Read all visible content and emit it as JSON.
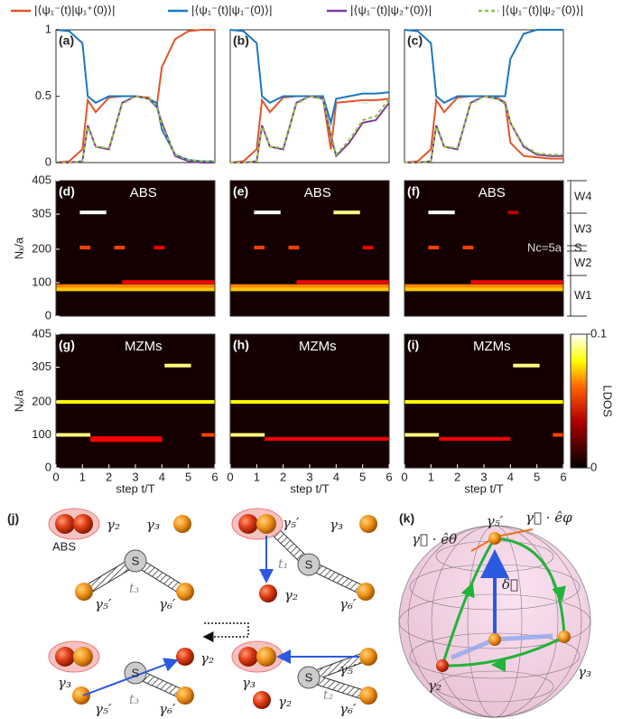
{
  "chart_data": [
    {
      "type": "line",
      "label": "(a)",
      "x": [
        0,
        0.5,
        1,
        1.2,
        1.5,
        2,
        2.5,
        3,
        3.5,
        3.8,
        4,
        4.5,
        5,
        5.5,
        6
      ],
      "xlim": [
        0,
        6
      ],
      "ylim": [
        0,
        1
      ],
      "yticks": [
        0,
        0.5,
        1
      ],
      "series": [
        {
          "name": "|⟨ψ₁⁻(t)|ψ₁⁺(0)⟩|",
          "color": "#e0562a",
          "values": [
            0,
            0.01,
            0.1,
            0.47,
            0.38,
            0.49,
            0.5,
            0.5,
            0.49,
            0.42,
            0.72,
            0.93,
            0.99,
            1,
            1
          ]
        },
        {
          "name": "|⟨ψ₁⁻(t)|ψ₁⁻(0)⟩|",
          "color": "#1a78c2",
          "values": [
            1,
            0.99,
            0.9,
            0.5,
            0.45,
            0.5,
            0.5,
            0.5,
            0.48,
            0.45,
            0.25,
            0.06,
            0.02,
            0.01,
            0.01
          ]
        },
        {
          "name": "|⟨ψ₁⁻(t)|ψ₂⁺(0)⟩|",
          "color": "#7e3b9a",
          "values": [
            0,
            0,
            0.01,
            0.28,
            0.12,
            0.1,
            0.45,
            0.5,
            0.48,
            0.42,
            0.3,
            0.05,
            0.01,
            0,
            0
          ]
        },
        {
          "name": "|⟨ψ₁⁻(t)|ψ₂⁻(0)⟩|",
          "color": "#8dc63f",
          "dash": true,
          "values": [
            0,
            0,
            0.01,
            0.27,
            0.12,
            0.11,
            0.44,
            0.5,
            0.48,
            0.43,
            0.28,
            0.06,
            0.02,
            0.01,
            0.01
          ]
        }
      ]
    },
    {
      "type": "line",
      "label": "(b)",
      "x": [
        0,
        0.5,
        1,
        1.2,
        1.5,
        2,
        2.5,
        3,
        3.5,
        3.8,
        4,
        4.5,
        5,
        5.5,
        6
      ],
      "xlim": [
        0,
        6
      ],
      "ylim": [
        0,
        1
      ],
      "series": [
        {
          "color": "#e0562a",
          "values": [
            0,
            0.01,
            0.1,
            0.47,
            0.38,
            0.49,
            0.5,
            0.5,
            0.49,
            0.1,
            0.45,
            0.46,
            0.47,
            0.47,
            0.48
          ]
        },
        {
          "color": "#1a78c2",
          "values": [
            1,
            0.99,
            0.9,
            0.5,
            0.45,
            0.5,
            0.5,
            0.5,
            0.5,
            0.3,
            0.48,
            0.5,
            0.52,
            0.52,
            0.53
          ]
        },
        {
          "color": "#7e3b9a",
          "values": [
            0,
            0,
            0.01,
            0.28,
            0.12,
            0.1,
            0.45,
            0.5,
            0.48,
            0.2,
            0.05,
            0.15,
            0.3,
            0.32,
            0.45
          ]
        },
        {
          "color": "#8dc63f",
          "dash": true,
          "values": [
            0,
            0,
            0.01,
            0.27,
            0.12,
            0.11,
            0.44,
            0.5,
            0.48,
            0.22,
            0.06,
            0.17,
            0.32,
            0.35,
            0.48
          ]
        }
      ]
    },
    {
      "type": "line",
      "label": "(c)",
      "x": [
        0,
        0.5,
        1,
        1.2,
        1.5,
        2,
        2.5,
        3,
        3.5,
        3.8,
        4,
        4.5,
        5,
        5.5,
        6
      ],
      "xlim": [
        0,
        6
      ],
      "ylim": [
        0,
        1
      ],
      "series": [
        {
          "color": "#e0562a",
          "values": [
            0,
            0.01,
            0.1,
            0.47,
            0.38,
            0.49,
            0.5,
            0.5,
            0.49,
            0.45,
            0.15,
            0.05,
            0.04,
            0.03,
            0.03
          ]
        },
        {
          "color": "#1a78c2",
          "values": [
            1,
            0.99,
            0.9,
            0.5,
            0.45,
            0.5,
            0.5,
            0.5,
            0.5,
            0.5,
            0.78,
            0.97,
            1,
            1,
            1
          ]
        },
        {
          "color": "#7e3b9a",
          "values": [
            0,
            0,
            0.01,
            0.28,
            0.12,
            0.1,
            0.45,
            0.5,
            0.48,
            0.45,
            0.3,
            0.12,
            0.06,
            0.05,
            0.05
          ]
        },
        {
          "color": "#8dc63f",
          "dash": true,
          "values": [
            0,
            0,
            0.01,
            0.27,
            0.12,
            0.11,
            0.44,
            0.5,
            0.48,
            0.44,
            0.3,
            0.13,
            0.07,
            0.06,
            0.06
          ]
        }
      ]
    },
    {
      "type": "heatmap",
      "label": "(d)",
      "annotation": "ABS",
      "xlim": [
        0,
        6
      ],
      "ylim": [
        0,
        405
      ],
      "yticks": [
        0,
        100,
        200,
        305,
        405
      ],
      "ylabel": "Nₓ/a",
      "streaks": [
        {
          "y": 310,
          "x": [
            0.9,
            1.9
          ],
          "value": 0.1
        },
        {
          "y": 205,
          "x": [
            0.9,
            1.3
          ],
          "value": 0.05
        },
        {
          "y": 205,
          "x": [
            2.2,
            2.6
          ],
          "value": 0.05
        },
        {
          "y": 205,
          "x": [
            3.7,
            4.1
          ],
          "value": 0.04
        },
        {
          "y": 102,
          "x": [
            2.5,
            6
          ],
          "value": 0.04
        },
        {
          "y": 90,
          "x": [
            0,
            6
          ],
          "value": 0.06
        },
        {
          "y": 80,
          "x": [
            0,
            6
          ],
          "value": 0.07
        }
      ]
    },
    {
      "type": "heatmap",
      "label": "(e)",
      "annotation": "ABS",
      "xlim": [
        0,
        6
      ],
      "ylim": [
        0,
        405
      ],
      "streaks": [
        {
          "y": 310,
          "x": [
            0.9,
            1.9
          ],
          "value": 0.1
        },
        {
          "y": 310,
          "x": [
            3.9,
            4.9
          ],
          "value": 0.09
        },
        {
          "y": 205,
          "x": [
            0.9,
            1.3
          ],
          "value": 0.05
        },
        {
          "y": 205,
          "x": [
            2.2,
            2.6
          ],
          "value": 0.05
        },
        {
          "y": 205,
          "x": [
            5,
            5.4
          ],
          "value": 0.04
        },
        {
          "y": 102,
          "x": [
            2.5,
            6
          ],
          "value": 0.04
        },
        {
          "y": 90,
          "x": [
            0,
            6
          ],
          "value": 0.06
        },
        {
          "y": 80,
          "x": [
            0,
            6
          ],
          "value": 0.07
        }
      ]
    },
    {
      "type": "heatmap",
      "label": "(f)",
      "annotation": "ABS",
      "xlim": [
        0,
        6
      ],
      "ylim": [
        0,
        405
      ],
      "regions": [
        "W4",
        "W3",
        "S",
        "W2",
        "W1"
      ],
      "note": "Nc=5a",
      "streaks": [
        {
          "y": 310,
          "x": [
            0.9,
            1.9
          ],
          "value": 0.1
        },
        {
          "y": 310,
          "x": [
            3.9,
            4.3
          ],
          "value": 0.03
        },
        {
          "y": 205,
          "x": [
            0.9,
            1.3
          ],
          "value": 0.05
        },
        {
          "y": 205,
          "x": [
            2.2,
            2.6
          ],
          "value": 0.05
        },
        {
          "y": 102,
          "x": [
            2.5,
            6
          ],
          "value": 0.04
        },
        {
          "y": 90,
          "x": [
            0,
            6
          ],
          "value": 0.06
        },
        {
          "y": 80,
          "x": [
            0,
            6
          ],
          "value": 0.07
        }
      ]
    },
    {
      "type": "heatmap",
      "label": "(g)",
      "annotation": "MZMs",
      "xlim": [
        0,
        6
      ],
      "ylim": [
        0,
        405
      ],
      "yticks": [
        0,
        100,
        200,
        305,
        405
      ],
      "ylabel": "Nₓ/a",
      "xticks": [
        0,
        1,
        2,
        3,
        4,
        5,
        6
      ],
      "xlabel": "step t/T",
      "streaks": [
        {
          "y": 310,
          "x": [
            4.1,
            5.1
          ],
          "value": 0.09
        },
        {
          "y": 200,
          "x": [
            0,
            6
          ],
          "value": 0.08
        },
        {
          "y": 100,
          "x": [
            0,
            1.3
          ],
          "value": 0.09
        },
        {
          "y": 90,
          "x": [
            1.3,
            4
          ],
          "value": 0.04
        },
        {
          "y": 84,
          "x": [
            1.3,
            4
          ],
          "value": 0.04
        },
        {
          "y": 100,
          "x": [
            5.5,
            6
          ],
          "value": 0.05
        }
      ]
    },
    {
      "type": "heatmap",
      "label": "(h)",
      "annotation": "MZMs",
      "xlim": [
        0,
        6
      ],
      "ylim": [
        0,
        405
      ],
      "xticks": [
        0,
        1,
        2,
        3,
        4,
        5,
        6
      ],
      "xlabel": "step t/T",
      "streaks": [
        {
          "y": 200,
          "x": [
            0,
            6
          ],
          "value": 0.08
        },
        {
          "y": 100,
          "x": [
            0,
            1.3
          ],
          "value": 0.09
        },
        {
          "y": 88,
          "x": [
            1.3,
            6
          ],
          "value": 0.04
        }
      ]
    },
    {
      "type": "heatmap",
      "label": "(i)",
      "annotation": "MZMs",
      "xlim": [
        0,
        6
      ],
      "ylim": [
        0,
        405
      ],
      "xticks": [
        0,
        1,
        2,
        3,
        4,
        5,
        6
      ],
      "xlabel": "step t/T",
      "colorbar": {
        "label": "LDOS",
        "lim": [
          0,
          0.1
        ],
        "ticks": [
          0,
          0.1
        ]
      },
      "streaks": [
        {
          "y": 310,
          "x": [
            4.1,
            5.1
          ],
          "value": 0.09
        },
        {
          "y": 200,
          "x": [
            0,
            6
          ],
          "value": 0.08
        },
        {
          "y": 100,
          "x": [
            0,
            1.3
          ],
          "value": 0.09
        },
        {
          "y": 88,
          "x": [
            1.3,
            4
          ],
          "value": 0.04
        },
        {
          "y": 100,
          "x": [
            5.6,
            6
          ],
          "value": 0.05
        }
      ]
    }
  ],
  "panel_j": {
    "texts": [
      "(j)",
      "ABS",
      "γ₂",
      "γ₃",
      "S",
      "γ₅′",
      "t₃",
      "γ₆′",
      "γ₅′",
      "γ₃",
      "t₁",
      "S",
      "γ₂",
      "γ₆′",
      "γ₃",
      "γ₂",
      "S",
      "γ₅′",
      "t₃",
      "γ₆′",
      "γ₃",
      "γ₅′",
      "S",
      "t₂",
      "γ₂",
      "γ₆′"
    ]
  },
  "panel_k": {
    "texts": [
      "(k)",
      "γ₅′",
      "γ⃗ · êφ",
      "γ⃗ · êθ",
      "δ⃗",
      "γ₂",
      "γ₃"
    ]
  }
}
